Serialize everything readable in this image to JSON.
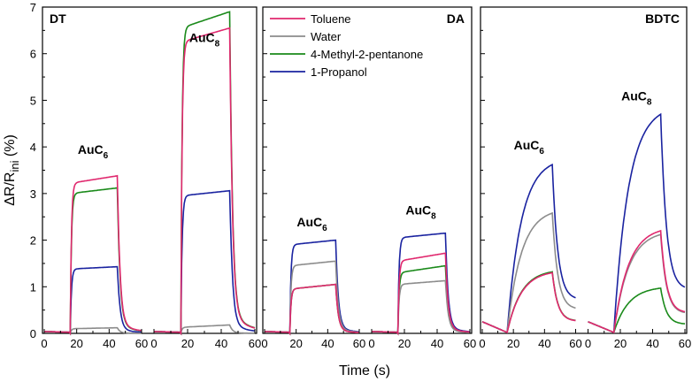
{
  "chart_data": {
    "type": "line",
    "ylabel_main": "ΔR/R",
    "ylabel_sub": "ini",
    "ylabel_unit": "(%)",
    "xlabel": "Time (s)",
    "ylim": [
      0,
      7
    ],
    "yticks": [
      0,
      1,
      2,
      3,
      4,
      5,
      6,
      7
    ],
    "xticks": [
      0,
      20,
      40,
      60
    ],
    "legend": [
      {
        "name": "Toluene",
        "color": "#e0286e"
      },
      {
        "name": "Water",
        "color": "#8c8c8c"
      },
      {
        "name": "4-Methyl-2-pentanone",
        "color": "#1a8a1a"
      },
      {
        "name": "1-Propanol",
        "color": "#1a23a0"
      }
    ],
    "panels": [
      {
        "label": "DT",
        "label_pos": "top-left",
        "subplots": [
          {
            "annotation": "AuC",
            "annotation_sub": "6",
            "annotation_y": 3.85,
            "shape": "step",
            "series": [
              {
                "name": "Toluene",
                "plateau": 3.38,
                "start": 3.22
              },
              {
                "name": "Water",
                "plateau": 0.12,
                "start": 0.1
              },
              {
                "name": "4-Methyl-2-pentanone",
                "plateau": 3.12,
                "start": 3.0
              },
              {
                "name": "1-Propanol",
                "plateau": 1.43,
                "start": 1.38
              }
            ]
          },
          {
            "annotation": "AuC",
            "annotation_sub": "8",
            "annotation_y": 6.25,
            "shape": "step",
            "series": [
              {
                "name": "Toluene",
                "plateau": 6.55,
                "start": 6.25
              },
              {
                "name": "Water",
                "plateau": 0.18,
                "start": 0.13
              },
              {
                "name": "4-Methyl-2-pentanone",
                "plateau": 6.9,
                "start": 6.55
              },
              {
                "name": "1-Propanol",
                "plateau": 3.06,
                "start": 2.95
              }
            ]
          }
        ]
      },
      {
        "label": "DA",
        "label_pos": "top-right",
        "subplots": [
          {
            "annotation": "AuC",
            "annotation_sub": "6",
            "annotation_y": 2.3,
            "shape": "step",
            "series": [
              {
                "name": "Toluene",
                "plateau": 1.05,
                "start": 0.95
              },
              {
                "name": "Water",
                "plateau": 1.55,
                "start": 1.45
              },
              {
                "name": "4-Methyl-2-pentanone",
                "plateau": 1.05,
                "start": 0.95
              },
              {
                "name": "1-Propanol",
                "plateau": 2.0,
                "start": 1.9
              }
            ]
          },
          {
            "annotation": "AuC",
            "annotation_sub": "8",
            "annotation_y": 2.55,
            "shape": "step",
            "series": [
              {
                "name": "Toluene",
                "plateau": 1.72,
                "start": 1.55
              },
              {
                "name": "Water",
                "plateau": 1.13,
                "start": 1.05
              },
              {
                "name": "4-Methyl-2-pentanone",
                "plateau": 1.45,
                "start": 1.3
              },
              {
                "name": "1-Propanol",
                "plateau": 2.15,
                "start": 2.05
              }
            ]
          }
        ]
      },
      {
        "label": "BDTC",
        "label_pos": "top-right",
        "subplots": [
          {
            "annotation": "AuC",
            "annotation_sub": "6",
            "annotation_y": 3.95,
            "shape": "rise",
            "series": [
              {
                "name": "Toluene",
                "plateau": 1.3,
                "start": 0.05
              },
              {
                "name": "Water",
                "plateau": 2.58,
                "start": 0.05
              },
              {
                "name": "4-Methyl-2-pentanone",
                "plateau": 1.32,
                "start": 0.05
              },
              {
                "name": "1-Propanol",
                "plateau": 3.62,
                "start": 0.05
              }
            ]
          },
          {
            "annotation": "AuC",
            "annotation_sub": "8",
            "annotation_y": 5.0,
            "shape": "rise",
            "series": [
              {
                "name": "Toluene",
                "plateau": 2.2,
                "start": 0.05
              },
              {
                "name": "Water",
                "plateau": 2.12,
                "start": 0.05
              },
              {
                "name": "4-Methyl-2-pentanone",
                "plateau": 0.97,
                "start": 0.05
              },
              {
                "name": "1-Propanol",
                "plateau": 4.7,
                "start": 0.05
              }
            ]
          }
        ]
      }
    ]
  }
}
